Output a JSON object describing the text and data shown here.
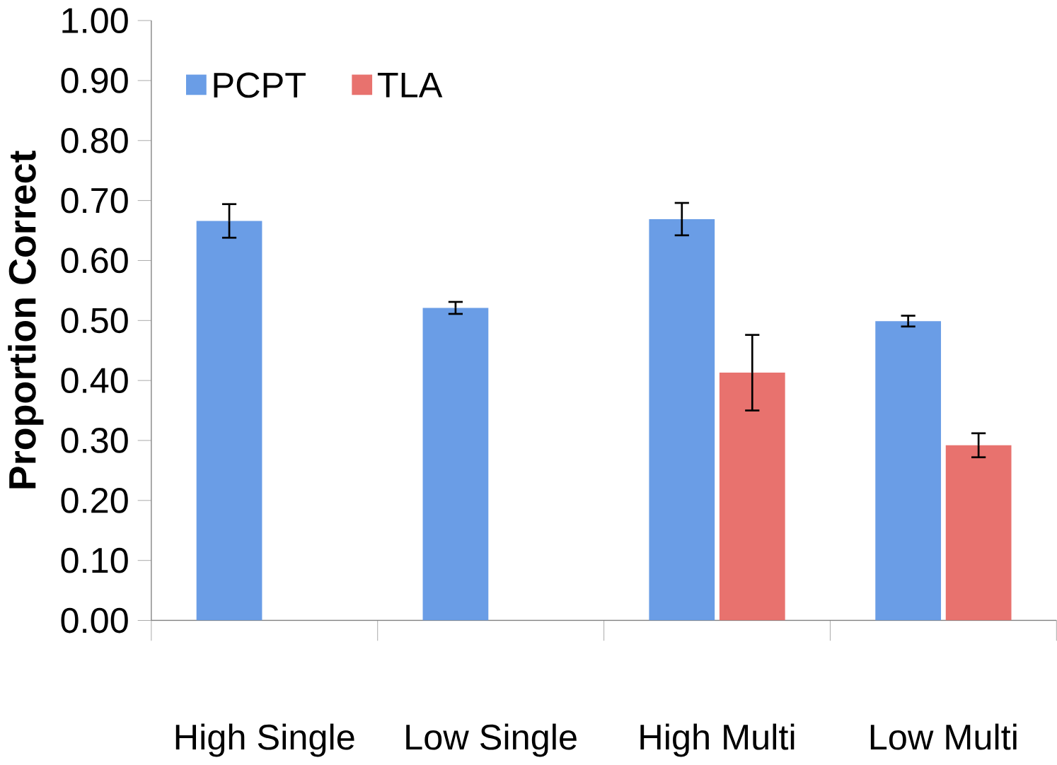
{
  "chart_data": {
    "type": "bar",
    "ylabel": "Proportion Correct",
    "categories": [
      "High Single",
      "Low Single",
      "High Multi",
      "Low Multi"
    ],
    "series": [
      {
        "name": "PCPT",
        "color": "#6a9de6",
        "values": [
          0.666,
          0.521,
          0.669,
          0.499
        ],
        "errors": [
          0.028,
          0.01,
          0.027,
          0.009
        ]
      },
      {
        "name": "TLA",
        "color": "#e8726e",
        "values": [
          null,
          null,
          0.413,
          0.292
        ],
        "errors": [
          null,
          null,
          0.063,
          0.02
        ]
      }
    ],
    "ylim": [
      0,
      1
    ],
    "yticks": [
      {
        "value": 0,
        "label": "0.00"
      },
      {
        "value": 0.1,
        "label": "0.10"
      },
      {
        "value": 0.2,
        "label": "0.20"
      },
      {
        "value": 0.3,
        "label": "0.30"
      },
      {
        "value": 0.4,
        "label": "0.40"
      },
      {
        "value": 0.5,
        "label": "0.50"
      },
      {
        "value": 0.6,
        "label": "0.60"
      },
      {
        "value": 0.7,
        "label": "0.70"
      },
      {
        "value": 0.8,
        "label": "0.80"
      },
      {
        "value": 0.9,
        "label": "0.90"
      },
      {
        "value": 1,
        "label": "1.00"
      }
    ],
    "grid": false,
    "legend": "top left"
  }
}
